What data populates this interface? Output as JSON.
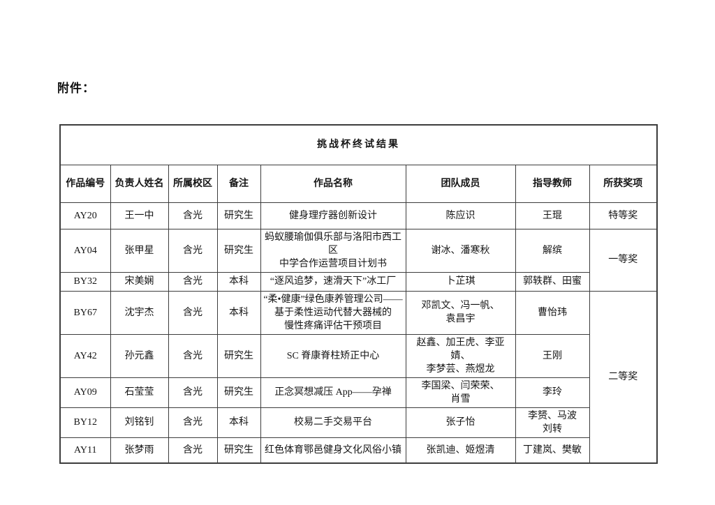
{
  "page": {
    "attachment_label": "附件："
  },
  "table": {
    "title": "挑战杯终试结果",
    "columns": [
      "作品编号",
      "负责人姓名",
      "所属校区",
      "备注",
      "作品名称",
      "团队成员",
      "指导教师",
      "所获奖项"
    ],
    "rows": [
      {
        "id": "AY20",
        "leader": "王一中",
        "campus": "含光",
        "note": "研究生",
        "work": "健身理疗器创新设计",
        "team": "陈应识",
        "teacher": "王琨",
        "award": "特等奖",
        "award_rowspan": 1
      },
      {
        "id": "AY04",
        "leader": "张甲星",
        "campus": "含光",
        "note": "研究生",
        "work": "蚂蚁腰瑜伽俱乐部与洛阳市西工区\n中学合作运营项目计划书",
        "team": "谢冰、潘寒秋",
        "teacher": "解缤",
        "award": "一等奖",
        "award_rowspan": 2
      },
      {
        "id": "BY32",
        "leader": "宋美娴",
        "campus": "含光",
        "note": "本科",
        "work": "“逐风追梦，速滑天下”冰工厂",
        "team": "卜芷琪",
        "teacher": "郭轶群、田蜜"
      },
      {
        "id": "BY67",
        "leader": "沈宇杰",
        "campus": "含光",
        "note": "本科",
        "work": "“柔•健康”绿色康养管理公司——\n基于柔性运动代替大器械的\n慢性疼痛评估干预项目",
        "team": "邓凯文、冯一帆、\n袁昌宇",
        "teacher": "曹怡玮",
        "award": "二等奖",
        "award_rowspan": 5
      },
      {
        "id": "AY42",
        "leader": "孙元鑫",
        "campus": "含光",
        "note": "研究生",
        "work": "SC 脊康脊柱矫正中心",
        "team": "赵鑫、加王虎、李亚婧、\n李梦芸、燕煜龙",
        "teacher": "王刚"
      },
      {
        "id": "AY09",
        "leader": "石莹莹",
        "campus": "含光",
        "note": "研究生",
        "work": "正念冥想减压 App——孕禅",
        "team": "李国梁、闫荣荣、\n肖雪",
        "teacher": "李玲"
      },
      {
        "id": "BY12",
        "leader": "刘铭钊",
        "campus": "含光",
        "note": "本科",
        "work": "校易二手交易平台",
        "team": "张子怡",
        "teacher": "李赟、马波\n刘转"
      },
      {
        "id": "AY11",
        "leader": "张梦雨",
        "campus": "含光",
        "note": "研究生",
        "work": "红色体育鄂邑健身文化风俗小镇",
        "team": "张凯迪、姬煜清",
        "teacher": "丁建岚、樊敏"
      }
    ]
  }
}
